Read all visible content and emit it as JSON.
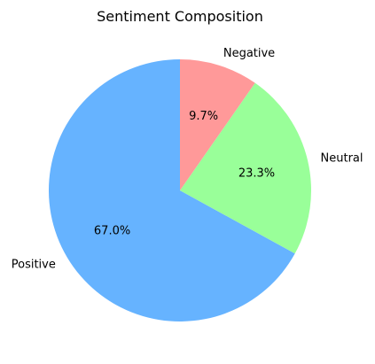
{
  "chart_data": {
    "type": "pie",
    "title": "Sentiment Composition",
    "categories": [
      "Positive",
      "Neutral",
      "Negative"
    ],
    "values": [
      67.0,
      23.3,
      9.7
    ],
    "value_labels": [
      "67.0%",
      "23.3%",
      "9.7%"
    ],
    "colors": [
      "#66b3ff",
      "#99ff99",
      "#ff9999"
    ],
    "start_angle_deg": 90,
    "direction": "counterclockwise",
    "legend": "none"
  }
}
